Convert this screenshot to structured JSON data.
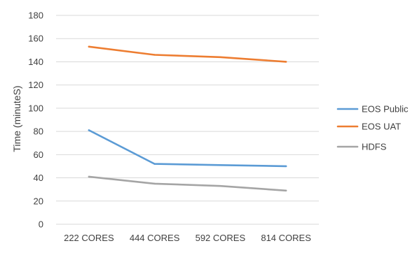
{
  "chart_data": {
    "type": "line",
    "title": "",
    "xlabel": "",
    "ylabel": "Time (minuteS)",
    "categories": [
      "222 CORES",
      "444 CORES",
      "592 CORES",
      "814 CORES"
    ],
    "ylim": [
      0,
      180
    ],
    "yticks": [
      0,
      20,
      40,
      60,
      80,
      100,
      120,
      140,
      160,
      180
    ],
    "grid": true,
    "legend_position": "right",
    "series": [
      {
        "name": "EOS Public",
        "color": "#5b9bd5",
        "values": [
          81,
          52,
          51,
          50
        ]
      },
      {
        "name": "EOS UAT",
        "color": "#ed7d31",
        "values": [
          153,
          146,
          144,
          140
        ]
      },
      {
        "name": "HDFS",
        "color": "#a5a5a5",
        "values": [
          41,
          35,
          33,
          29
        ]
      }
    ]
  }
}
